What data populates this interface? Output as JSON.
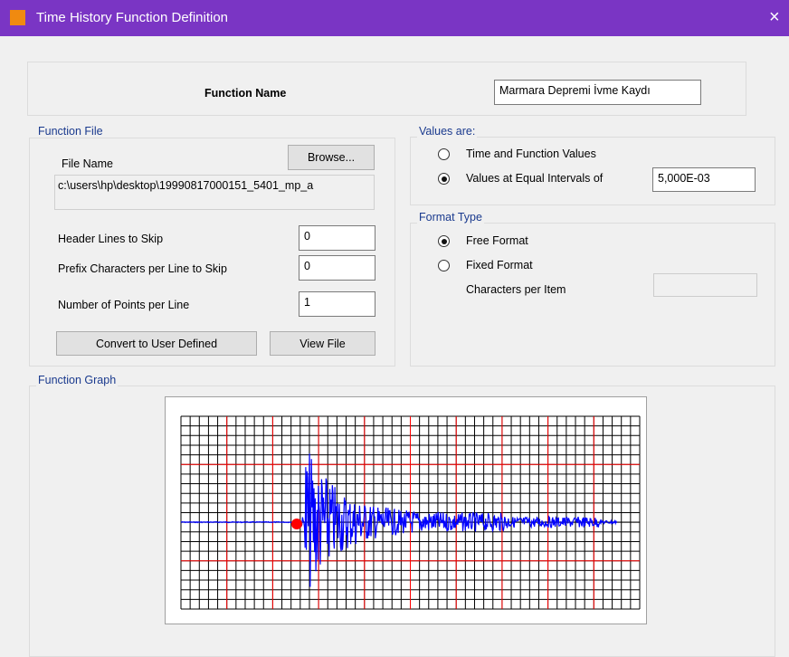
{
  "window": {
    "title": "Time History  Function Definition",
    "close": "×"
  },
  "function_name": {
    "label": "Function Name",
    "value": "Marmara Depremi İvme Kaydı"
  },
  "function_file": {
    "legend": "Function File",
    "file_name_label": "File Name",
    "browse": "Browse...",
    "file_path": "c:\\users\\hp\\desktop\\19990817000151_5401_mp_a",
    "fields": [
      {
        "label": "Header Lines to Skip",
        "value": "0"
      },
      {
        "label": "Prefix Characters per Line to Skip",
        "value": "0"
      },
      {
        "label": "Number of Points per Line",
        "value": "1"
      }
    ],
    "buttons": [
      "Convert to User Defined",
      "View File"
    ]
  },
  "values_are": {
    "legend": "Values are:",
    "options": [
      "Time and Function Values",
      "Values at Equal Intervals of"
    ],
    "selected": 1,
    "interval": "5,000E-03"
  },
  "format_type": {
    "legend": "Format Type",
    "options": [
      "Free Format",
      "Fixed Format"
    ],
    "selected": 0,
    "chars_label": "Characters per Item"
  },
  "function_graph": {
    "legend": "Function Graph"
  }
}
